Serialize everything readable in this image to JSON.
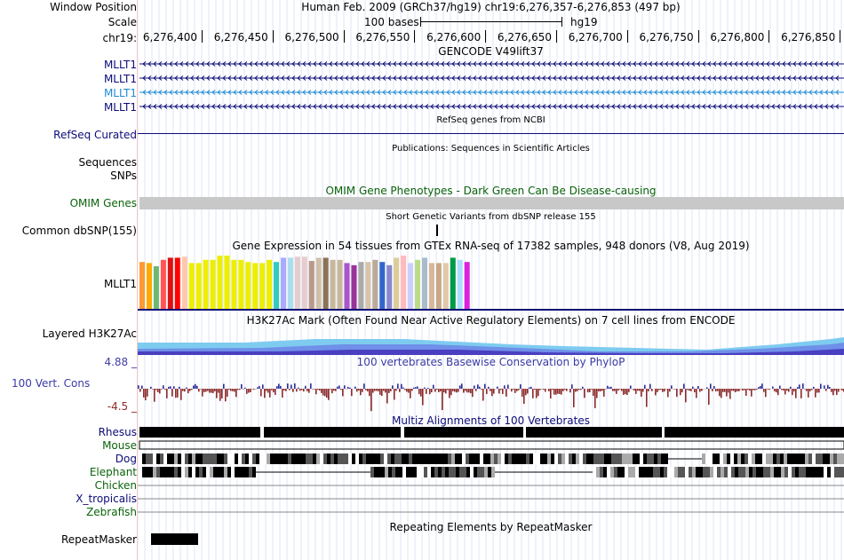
{
  "header": {
    "window_position_label": "Window Position",
    "window_position_text": "Human Feb. 2009 (GRCh37/hg19)   chr19:6,276,357-6,276,853 (497 bp)",
    "scale_label": "Scale",
    "scale_text": "100 bases",
    "scale_assembly": "hg19",
    "chrom_label": "chr19:",
    "ruler_ticks": [
      "6,276,400",
      "6,276,450",
      "6,276,500",
      "6,276,550",
      "6,276,600",
      "6,276,650",
      "6,276,700",
      "6,276,750",
      "6,276,800",
      "6,276,850"
    ]
  },
  "tracks": {
    "gencode": {
      "title": "GENCODE V49lift37",
      "rows": [
        {
          "label": "MLLT1",
          "color": "#0c0c78"
        },
        {
          "label": "MLLT1",
          "color": "#0c0c78"
        },
        {
          "label": "MLLT1",
          "color": "#1e8bd5"
        },
        {
          "label": "MLLT1",
          "color": "#0c0c78"
        }
      ]
    },
    "refseq": {
      "title": "RefSeq genes from NCBI",
      "label": "RefSeq Curated"
    },
    "publications": {
      "title": "Publications: Sequences in Scientific Articles",
      "label_sequences": "Sequences",
      "label_snps": "SNPs"
    },
    "omim": {
      "title": "OMIM Gene Phenotypes - Dark Green Can Be Disease-causing",
      "label": "OMIM Genes"
    },
    "dbsnp": {
      "title": "Short Genetic Variants from dbSNP release 155",
      "label": "Common dbSNP(155)"
    },
    "gtex": {
      "title": "Gene Expression in 54 tissues from GTEx RNA-seq of 17382 samples, 948 donors (V8, Aug 2019)",
      "label": "MLLT1",
      "bars": [
        {
          "v": 0.88,
          "c": "#ff9933"
        },
        {
          "v": 0.86,
          "c": "#ffaa00"
        },
        {
          "v": 0.8,
          "c": "#6fb86f"
        },
        {
          "v": 0.92,
          "c": "#ff5555"
        },
        {
          "v": 0.96,
          "c": "#dd1111"
        },
        {
          "v": 0.96,
          "c": "#ff0000"
        },
        {
          "v": 0.98,
          "c": "#ffc8aa"
        },
        {
          "v": 0.86,
          "c": "#eeee00"
        },
        {
          "v": 0.86,
          "c": "#eeee00"
        },
        {
          "v": 0.92,
          "c": "#eeee00"
        },
        {
          "v": 0.92,
          "c": "#eeee00"
        },
        {
          "v": 1.0,
          "c": "#eeee00"
        },
        {
          "v": 1.0,
          "c": "#eeee00"
        },
        {
          "v": 0.92,
          "c": "#eeee00"
        },
        {
          "v": 0.92,
          "c": "#eeee00"
        },
        {
          "v": 0.88,
          "c": "#eeee00"
        },
        {
          "v": 0.86,
          "c": "#eeee00"
        },
        {
          "v": 0.86,
          "c": "#eeee00"
        },
        {
          "v": 0.92,
          "c": "#eeee00"
        },
        {
          "v": 0.88,
          "c": "#33ccbb"
        },
        {
          "v": 0.96,
          "c": "#aaaaff"
        },
        {
          "v": 0.96,
          "c": "#aaddee"
        },
        {
          "v": 0.98,
          "c": "#e6cccc"
        },
        {
          "v": 0.98,
          "c": "#e6cccc"
        },
        {
          "v": 0.9,
          "c": "#bb9988"
        },
        {
          "v": 0.96,
          "c": "#d0c0aa"
        },
        {
          "v": 0.96,
          "c": "#8b7355"
        },
        {
          "v": 0.92,
          "c": "#c8b89a"
        },
        {
          "v": 0.92,
          "c": "#c8b89a"
        },
        {
          "v": 0.86,
          "c": "#aa55cc"
        },
        {
          "v": 0.82,
          "c": "#993399"
        },
        {
          "v": 0.88,
          "c": "#aaaaaa"
        },
        {
          "v": 0.88,
          "c": "#d8c4a8"
        },
        {
          "v": 0.92,
          "c": "#bbaa99"
        },
        {
          "v": 0.88,
          "c": "#3366cc"
        },
        {
          "v": 0.82,
          "c": "#8888cc"
        },
        {
          "v": 0.96,
          "c": "#ddcc99"
        },
        {
          "v": 1.0,
          "c": "#ffbbbb"
        },
        {
          "v": 0.86,
          "c": "#ccccff"
        },
        {
          "v": 0.92,
          "c": "#bbdd88"
        },
        {
          "v": 0.96,
          "c": "#aabbcc"
        },
        {
          "v": 0.86,
          "c": "#d8b89a"
        },
        {
          "v": 0.86,
          "c": "#c8a88a"
        },
        {
          "v": 0.86,
          "c": "#e0c8aa"
        },
        {
          "v": 0.96,
          "c": "#009944"
        },
        {
          "v": 0.92,
          "c": "#aaddff"
        },
        {
          "v": 0.88,
          "c": "#dd22dd"
        }
      ]
    },
    "h3k27ac": {
      "title": "H3K27Ac Mark (Often Found Near Active Regulatory Elements) on 7 cell lines from ENCODE",
      "label": "Layered H3K27Ac"
    },
    "cons": {
      "title": "100 vertebrates Basewise Conservation by PhyloP",
      "label": "100 Vert. Cons",
      "max": "4.88 _",
      "min": "-4.5 _"
    },
    "multiz": {
      "title": "Multiz Alignments of 100 Vertebrates",
      "species": [
        {
          "name": "Rhesus",
          "color": "#0c0c78"
        },
        {
          "name": "Mouse",
          "color": "#0a630a"
        },
        {
          "name": "Dog",
          "color": "#0c0c78"
        },
        {
          "name": "Elephant",
          "color": "#0a630a"
        },
        {
          "name": "Chicken",
          "color": "#0a630a"
        },
        {
          "name": "X_tropicalis",
          "color": "#0c0c78"
        },
        {
          "name": "Zebrafish",
          "color": "#0a630a"
        }
      ]
    },
    "repeat": {
      "title": "Repeating Elements by RepeatMasker",
      "label": "RepeatMasker"
    }
  }
}
